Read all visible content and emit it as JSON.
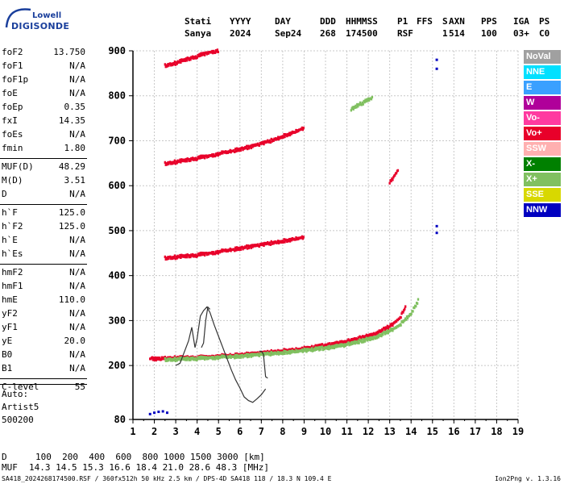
{
  "logo": {
    "line1": "Lowell",
    "line2": "DIGISONDE"
  },
  "header": {
    "labels": [
      "Stati",
      "YYYY",
      "DAY",
      "DDD",
      "HHMMSS",
      "P1",
      "FFS",
      "S",
      "AXN",
      "PPS",
      "IGA",
      "PS"
    ],
    "values": [
      "Sanya",
      "2024",
      "Sep24",
      "268",
      "174500",
      "RSF",
      "",
      "1",
      "514",
      "100",
      "03+",
      "C0"
    ]
  },
  "params": [
    {
      "k": "foF2",
      "v": "13.750"
    },
    {
      "k": "foF1",
      "v": "N/A"
    },
    {
      "k": "foF1p",
      "v": "N/A"
    },
    {
      "k": "foE",
      "v": "N/A"
    },
    {
      "k": "foEp",
      "v": "0.35"
    },
    {
      "k": "fxI",
      "v": "14.35"
    },
    {
      "k": "foEs",
      "v": "N/A"
    },
    {
      "k": "fmin",
      "v": "1.80"
    },
    {
      "k": "MUF(D)",
      "v": "48.29"
    },
    {
      "k": "M(D)",
      "v": "3.51"
    },
    {
      "k": "D",
      "v": "N/A"
    },
    {
      "k": "h`F",
      "v": "125.0"
    },
    {
      "k": "h`F2",
      "v": "125.0"
    },
    {
      "k": "h`E",
      "v": "N/A"
    },
    {
      "k": "h`Es",
      "v": "N/A"
    },
    {
      "k": "hmF2",
      "v": "N/A"
    },
    {
      "k": "hmF1",
      "v": "N/A"
    },
    {
      "k": "hmE",
      "v": "110.0"
    },
    {
      "k": "yF2",
      "v": "N/A"
    },
    {
      "k": "yF1",
      "v": "N/A"
    },
    {
      "k": "yE",
      "v": "20.0"
    },
    {
      "k": "B0",
      "v": "N/A"
    },
    {
      "k": "B1",
      "v": "N/A"
    },
    {
      "k": "C-level",
      "v": "55"
    }
  ],
  "auto": {
    "line1": "Auto:",
    "line2": "Artist5",
    "line3": "500200"
  },
  "legend": [
    {
      "label": "NoVal",
      "color": "#a0a0a0"
    },
    {
      "label": "NNE",
      "color": "#00e0ff"
    },
    {
      "label": "E",
      "color": "#3aa0ff"
    },
    {
      "label": "W",
      "color": "#b0009a"
    },
    {
      "label": "Vo-",
      "color": "#ff3aa0"
    },
    {
      "label": "Vo+",
      "color": "#e8002a"
    },
    {
      "label": "SSW",
      "color": "#ffb0b0"
    },
    {
      "label": "X-",
      "color": "#008000"
    },
    {
      "label": "X+",
      "color": "#80c060"
    },
    {
      "label": "SSE",
      "color": "#d8d800"
    },
    {
      "label": "NNW",
      "color": "#0000c0"
    }
  ],
  "muf_table": {
    "d_label": "D",
    "d_values": "100  200  400  600  800 1000 1500 3000 [km]",
    "muf_label": "MUF",
    "muf_values": "14.3 14.5 15.3 16.6 18.4 21.0 28.6 48.3 [MHz]"
  },
  "footer": {
    "left": "SA418_2024268174500.RSF / 360fx512h 50 kHz 2.5 km / DPS-4D SA418 118 / 18.3 N 109.4 E",
    "right": "Ion2Png v. 1.3.16"
  },
  "chart_data": {
    "type": "scatter",
    "xlabel": "",
    "ylabel": "",
    "x_ticks": [
      1,
      2,
      3,
      4,
      5,
      6,
      7,
      8,
      9,
      10,
      11,
      12,
      13,
      14,
      15,
      16,
      17,
      18,
      19
    ],
    "y_ticks": [
      80,
      200,
      300,
      400,
      500,
      600,
      700,
      800,
      900
    ],
    "xlim": [
      1,
      19
    ],
    "ylim": [
      80,
      900
    ],
    "grid": true,
    "legend_position": "right",
    "series": [
      {
        "name": "Vo+",
        "color": "#e8002a",
        "trace": "F-layer O trace",
        "x": [
          1.8,
          3,
          4,
          5,
          6,
          7,
          8,
          9,
          10,
          11,
          12,
          12.5,
          13,
          13.5,
          13.75
        ],
        "y": [
          214,
          216,
          217,
          220,
          223,
          227,
          232,
          237,
          244,
          253,
          265,
          274,
          286,
          306,
          330
        ]
      },
      {
        "name": "X+",
        "color": "#80c060",
        "trace": "F-layer X trace",
        "x": [
          2.5,
          4,
          6,
          8,
          10,
          11,
          12,
          12.5,
          13,
          13.5,
          14,
          14.35
        ],
        "y": [
          212,
          215,
          220,
          228,
          238,
          246,
          258,
          265,
          276,
          290,
          315,
          345
        ]
      },
      {
        "name": "Vo+",
        "color": "#e8002a",
        "trace": "2nd hop",
        "x": [
          2.5,
          4,
          5,
          6,
          7,
          8,
          9
        ],
        "y": [
          438,
          445,
          452,
          460,
          468,
          476,
          485
        ]
      },
      {
        "name": "Vo+",
        "color": "#e8002a",
        "trace": "3rd hop",
        "x": [
          2.5,
          3.5,
          4.5,
          5.5,
          6.5,
          7.5,
          8.5,
          9
        ],
        "y": [
          648,
          656,
          665,
          675,
          686,
          700,
          718,
          728
        ]
      },
      {
        "name": "Vo+",
        "color": "#e8002a",
        "trace": "4th hop",
        "x": [
          2.5,
          3,
          3.5,
          4,
          4.5,
          5
        ],
        "y": [
          866,
          872,
          880,
          887,
          895,
          900
        ]
      },
      {
        "name": "Vo+",
        "color": "#e8002a",
        "trace": "oblique echo",
        "x": [
          13,
          13.2,
          13.4
        ],
        "y": [
          605,
          620,
          635
        ]
      },
      {
        "name": "X+",
        "color": "#80c060",
        "trace": "oblique echo",
        "x": [
          11.2,
          11.6,
          12.2
        ],
        "y": [
          770,
          780,
          795
        ]
      },
      {
        "name": "NNW",
        "color": "#0000c0",
        "trace": "low echoes",
        "x": [
          1.8,
          2,
          2.2,
          2.4,
          2.6
        ],
        "y": [
          92,
          95,
          97,
          98,
          95
        ]
      },
      {
        "name": "NNW",
        "color": "#0000c0",
        "trace": "spurious",
        "x": [
          15.2,
          15.2,
          15.2,
          15.2
        ],
        "y": [
          880,
          860,
          510,
          495
        ]
      }
    ],
    "profile": {
      "name": "profile",
      "color": "#333333",
      "x": [
        3.0,
        3.2,
        3.4,
        3.6,
        3.75,
        3.9,
        4.0,
        4.15,
        4.3,
        4.45,
        4.6,
        4.8,
        5.0,
        5.2,
        5.4,
        5.6,
        5.8,
        6.0,
        6.2,
        6.4,
        6.6,
        6.8,
        7.0,
        7.2
      ],
      "y": [
        200,
        205,
        230,
        255,
        285,
        240,
        260,
        310,
        322,
        330,
        318,
        290,
        265,
        240,
        215,
        190,
        168,
        150,
        130,
        122,
        118,
        126,
        135,
        148
      ]
    },
    "profile2": {
      "x": [
        6.9,
        7.0,
        7.1,
        7.2,
        7.3
      ],
      "y": [
        232,
        232,
        225,
        175,
        172
      ]
    },
    "profile3": {
      "x": [
        4.2,
        4.3,
        4.4,
        4.5,
        4.6
      ],
      "y": [
        240,
        250,
        300,
        330,
        325
      ]
    }
  }
}
